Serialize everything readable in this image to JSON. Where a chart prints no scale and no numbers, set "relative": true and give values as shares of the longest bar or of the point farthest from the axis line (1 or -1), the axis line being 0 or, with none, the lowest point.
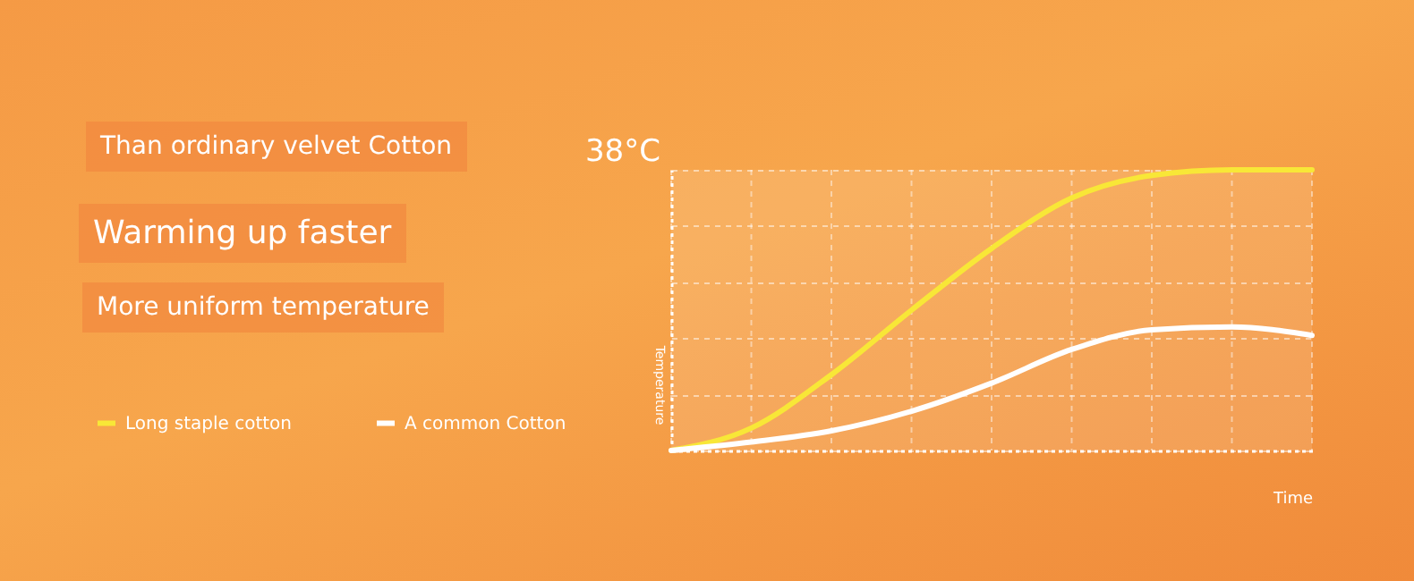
{
  "chart_data": {
    "type": "line",
    "relative": true,
    "xlabel": "Time",
    "ylabel": "Temperature",
    "categories": [
      null,
      null,
      null,
      null,
      null,
      null,
      null,
      null,
      null
    ],
    "series": [
      {
        "name": "Long staple cotton",
        "color": "#f8e737",
        "values": [
          0,
          0.08,
          0.27,
          0.5,
          0.72,
          0.9,
          0.98,
          1,
          1
        ]
      },
      {
        "name": "A common Cotton",
        "color": "#ffffff",
        "values": [
          0,
          0.03,
          0.07,
          0.14,
          0.24,
          0.36,
          0.43,
          0.44,
          0.41
        ]
      }
    ],
    "annotations": [
      "Than ordinary velvet Cotton",
      "Warming up faster",
      "More uniform temperature",
      "38°C"
    ],
    "grid": true,
    "legend": "bottom left",
    "tick_labels": false,
    "marker": "none",
    "line_style": "solid"
  }
}
